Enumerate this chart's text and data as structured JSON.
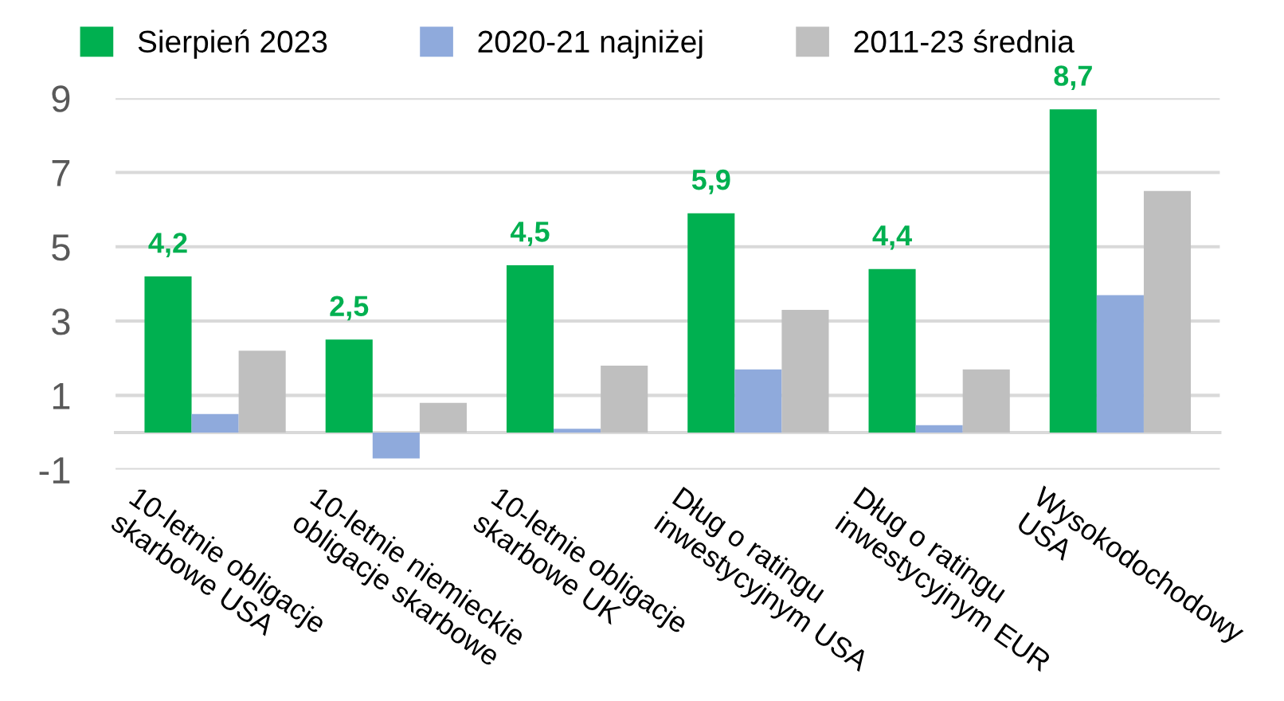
{
  "chart_data": {
    "type": "bar",
    "categories": [
      "10-letnie obligacje\nskarbowe USA",
      "10-letnie niemieckie\nobligacje skarbowe",
      "10-letnie obligacje\nskarbowe UK",
      "Dług o ratingu\ninwestycyjnym USA",
      "Dług o ratingu\ninwestycyjnym EUR",
      "Wysokodochodowy\nUSA"
    ],
    "series": [
      {
        "name": "Sierpień 2023",
        "color": "#00b050",
        "values": [
          4.2,
          2.5,
          4.5,
          5.9,
          4.4,
          8.7
        ],
        "value_labels": [
          "4,2",
          "2,5",
          "4,5",
          "5,9",
          "4,4",
          "8,7"
        ]
      },
      {
        "name": "2020-21 najniżej",
        "color": "#8faadc",
        "values": [
          0.5,
          -0.7,
          0.1,
          1.7,
          0.2,
          3.7
        ]
      },
      {
        "name": "2011-23 średnia",
        "color": "#bfbfbf",
        "values": [
          2.2,
          0.8,
          1.8,
          3.3,
          1.7,
          6.5
        ]
      }
    ],
    "ylim": [
      -1,
      9
    ],
    "yticks": [
      -1,
      1,
      3,
      5,
      7,
      9
    ],
    "grid": "y",
    "legend": "top"
  }
}
